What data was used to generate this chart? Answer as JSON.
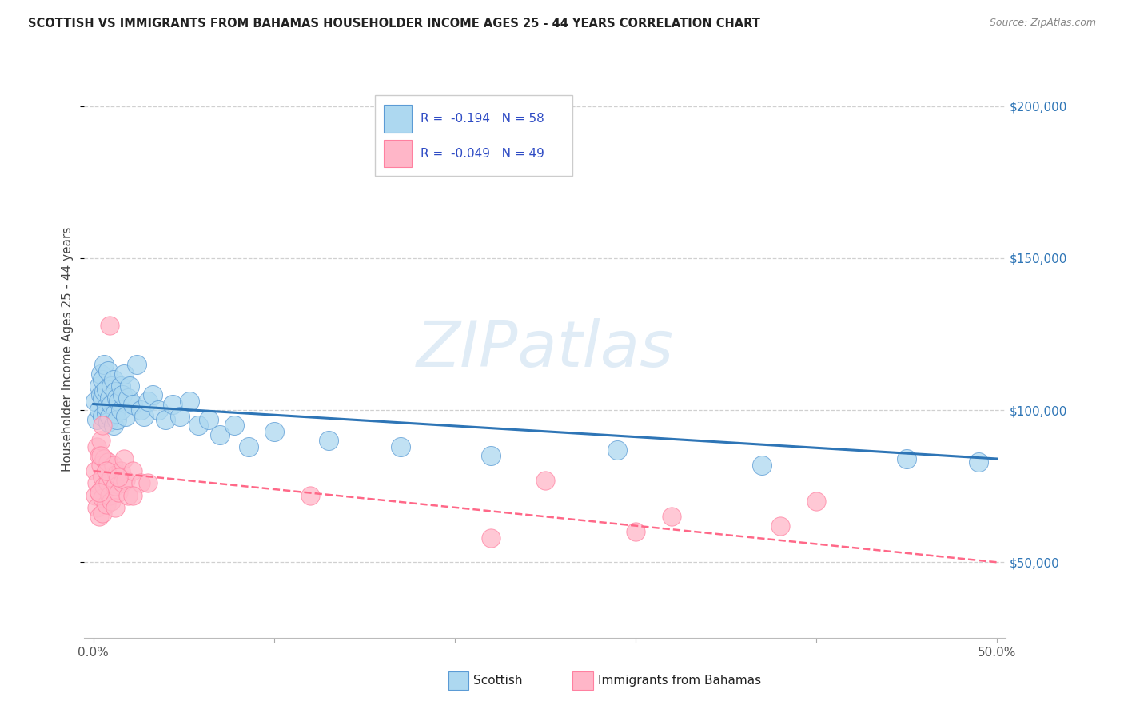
{
  "title": "SCOTTISH VS IMMIGRANTS FROM BAHAMAS HOUSEHOLDER INCOME AGES 25 - 44 YEARS CORRELATION CHART",
  "source": "Source: ZipAtlas.com",
  "ylabel": "Householder Income Ages 25 - 44 years",
  "xlim": [
    -0.005,
    0.505
  ],
  "ylim": [
    25000,
    215000
  ],
  "xtick_vals": [
    0.0,
    0.1,
    0.2,
    0.3,
    0.4,
    0.5
  ],
  "xtick_labels": [
    "0.0%",
    "",
    "",
    "",
    "",
    "50.0%"
  ],
  "ytick_vals": [
    50000,
    100000,
    150000,
    200000
  ],
  "ytick_labels": [
    "$50,000",
    "$100,000",
    "$150,000",
    "$200,000"
  ],
  "blue_color": "#ADD8F0",
  "blue_edge_color": "#5B9BD5",
  "blue_line_color": "#2E75B6",
  "pink_color": "#FFB6C8",
  "pink_edge_color": "#FF80A0",
  "pink_line_color": "#FF6888",
  "watermark": "ZIPatlas",
  "legend_text_1": "R =  -0.194   N = 58",
  "legend_text_2": "R =  -0.049   N = 49",
  "legend_text_color": "#2E4BC4",
  "blue_label": "Scottish",
  "pink_label": "Immigrants from Bahamas",
  "blue_scatter_x": [
    0.001,
    0.002,
    0.003,
    0.003,
    0.004,
    0.004,
    0.005,
    0.005,
    0.005,
    0.006,
    0.006,
    0.007,
    0.007,
    0.007,
    0.008,
    0.008,
    0.009,
    0.009,
    0.01,
    0.01,
    0.011,
    0.011,
    0.012,
    0.012,
    0.013,
    0.013,
    0.014,
    0.015,
    0.015,
    0.016,
    0.017,
    0.018,
    0.019,
    0.02,
    0.022,
    0.024,
    0.026,
    0.028,
    0.03,
    0.033,
    0.036,
    0.04,
    0.044,
    0.048,
    0.053,
    0.058,
    0.064,
    0.07,
    0.078,
    0.086,
    0.1,
    0.13,
    0.17,
    0.22,
    0.29,
    0.37,
    0.45,
    0.49
  ],
  "blue_scatter_y": [
    103000,
    97000,
    108000,
    100000,
    105000,
    112000,
    98000,
    104000,
    110000,
    106000,
    115000,
    99000,
    107000,
    101000,
    113000,
    96000,
    104000,
    98000,
    108000,
    102000,
    110000,
    95000,
    106000,
    99000,
    104000,
    97000,
    103000,
    108000,
    100000,
    105000,
    112000,
    98000,
    104000,
    108000,
    102000,
    115000,
    100000,
    98000,
    103000,
    105000,
    100000,
    97000,
    102000,
    98000,
    103000,
    95000,
    97000,
    92000,
    95000,
    88000,
    93000,
    90000,
    88000,
    85000,
    87000,
    82000,
    84000,
    83000
  ],
  "pink_scatter_x": [
    0.001,
    0.001,
    0.002,
    0.002,
    0.002,
    0.003,
    0.003,
    0.003,
    0.004,
    0.004,
    0.005,
    0.005,
    0.005,
    0.006,
    0.006,
    0.007,
    0.007,
    0.008,
    0.008,
    0.009,
    0.009,
    0.01,
    0.01,
    0.011,
    0.012,
    0.012,
    0.013,
    0.014,
    0.015,
    0.016,
    0.017,
    0.018,
    0.019,
    0.022,
    0.026,
    0.003,
    0.004,
    0.007,
    0.014,
    0.022,
    0.03,
    0.12,
    0.25,
    0.32,
    0.4,
    0.38,
    0.3,
    0.22,
    0.005
  ],
  "pink_scatter_y": [
    80000,
    72000,
    88000,
    76000,
    68000,
    85000,
    73000,
    65000,
    82000,
    90000,
    78000,
    71000,
    66000,
    84000,
    75000,
    80000,
    69000,
    76000,
    83000,
    72000,
    128000,
    78000,
    70000,
    82000,
    75000,
    68000,
    79000,
    73000,
    80000,
    76000,
    84000,
    77000,
    72000,
    80000,
    76000,
    73000,
    85000,
    80000,
    78000,
    72000,
    76000,
    72000,
    77000,
    65000,
    70000,
    62000,
    60000,
    58000,
    95000
  ]
}
